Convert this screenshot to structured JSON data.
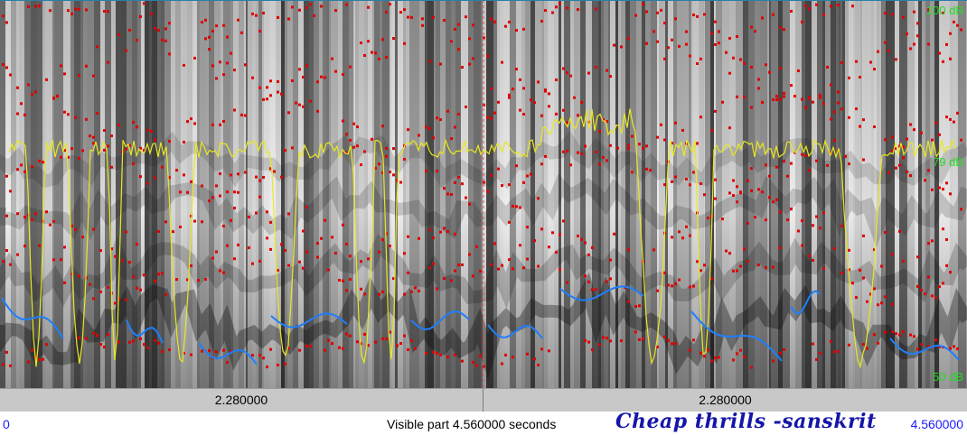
{
  "db_labels": {
    "top": "100 dB",
    "mid": "79 dB",
    "bottom": "50 dB"
  },
  "segments": {
    "left_duration": "2.280000",
    "right_duration": "2.280000"
  },
  "time": {
    "start": "0",
    "end": "4.560000",
    "visible_label": "Visible part 4.560000 seconds"
  },
  "title": "Cheap thrills -sanskrit",
  "colors": {
    "pitch": "#1e7fff",
    "intensity": "#e8e820",
    "formants": "#e00000",
    "cursor": "#ff4040",
    "db_labels": "#22dd22",
    "title": "#1515a8"
  }
}
